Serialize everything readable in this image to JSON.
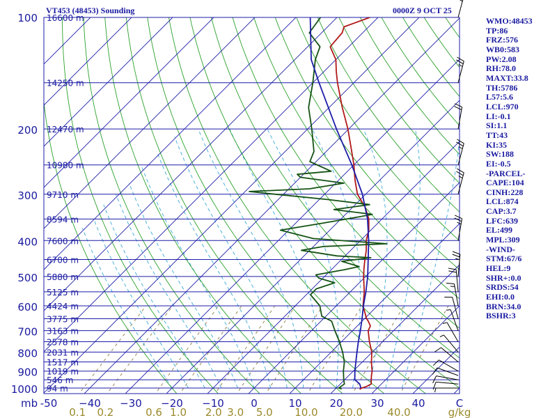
{
  "header": {
    "station": "VT453 (48453) Sounding",
    "time": "0000Z  9 OCT 25"
  },
  "colors": {
    "temperature": "#b01818",
    "dewpoint": "#145214",
    "parcel": "#1c1ca8",
    "isobar": "#1c1ca8",
    "isotherm": "#1c1ca8",
    "dry_adiabat": "#2aa02a",
    "moist_adiabat": "#3aa8d8",
    "mixing_ratio": "#8a7a40",
    "axis_text": "#1a1aa0",
    "mixing_text": "#9a8a2a",
    "wind_barb": "#000000"
  },
  "chart_data": {
    "type": "line",
    "title": "VT453 (48453) Sounding",
    "diagram": "skew-T log-P",
    "y_axis_label": "mb",
    "pressure_levels": [
      100,
      200,
      300,
      400,
      500,
      600,
      700,
      800,
      900,
      1000
    ],
    "temperature_ticks": [
      -50,
      -40,
      -30,
      -20,
      -10,
      0,
      10,
      20,
      30,
      40
    ],
    "temperature_tick_labels": [
      "-50",
      "−40",
      "−30",
      "−20",
      "−10",
      "0",
      "10",
      "20",
      "30",
      "40"
    ],
    "corner_label": "C",
    "mixing_ratio_labels": [
      "0.1",
      "0.2",
      "0.6",
      "1.0",
      "2.0",
      "3.0",
      "5.0",
      "10.0",
      "20.0",
      "40.0"
    ],
    "mixing_ratio_values": [
      0.1,
      0.2,
      0.6,
      1.0,
      2.0,
      3.0,
      5.0,
      10.0,
      20.0,
      40.0
    ],
    "mixing_ratio_unit": "g/kg",
    "height_labels": [
      {
        "p": 100,
        "label": "16600 m"
      },
      {
        "p": 150,
        "label": "14250 m"
      },
      {
        "p": 200,
        "label": "12470 m"
      },
      {
        "p": 250,
        "label": "10980 m"
      },
      {
        "p": 300,
        "label": "9710 m"
      },
      {
        "p": 350,
        "label": "8594 m"
      },
      {
        "p": 400,
        "label": "7600 m"
      },
      {
        "p": 450,
        "label": "6700 m"
      },
      {
        "p": 500,
        "label": "5880 m"
      },
      {
        "p": 550,
        "label": "5125 m"
      },
      {
        "p": 600,
        "label": "4424 m"
      },
      {
        "p": 650,
        "label": "3775 m"
      },
      {
        "p": 700,
        "label": "3163 m"
      },
      {
        "p": 750,
        "label": "2578 m"
      },
      {
        "p": 800,
        "label": "2031 m"
      },
      {
        "p": 850,
        "label": "1517 m"
      },
      {
        "p": 900,
        "label": "1019 m"
      },
      {
        "p": 950,
        "label": "546 m"
      },
      {
        "p": 1000,
        "label": "94 m"
      }
    ],
    "series": [
      {
        "name": "Temperature",
        "points": [
          [
            1008,
            26.0
          ],
          [
            1000,
            26.2
          ],
          [
            990,
            27.0
          ],
          [
            975,
            27.5
          ],
          [
            950,
            26.5
          ],
          [
            925,
            25.5
          ],
          [
            900,
            24.6
          ],
          [
            875,
            23.4
          ],
          [
            850,
            22.2
          ],
          [
            800,
            19.9
          ],
          [
            750,
            16.8
          ],
          [
            700,
            13.8
          ],
          [
            680,
            13.2
          ],
          [
            660,
            11.5
          ],
          [
            650,
            10.5
          ],
          [
            600,
            6.5
          ],
          [
            550,
            3.4
          ],
          [
            500,
            -0.5
          ],
          [
            475,
            -2.4
          ],
          [
            450,
            -4.3
          ],
          [
            425,
            -6.2
          ],
          [
            400,
            -8.6
          ],
          [
            375,
            -10.5
          ],
          [
            350,
            -13.2
          ],
          [
            325,
            -17.0
          ],
          [
            300,
            -22.0
          ],
          [
            275,
            -26.0
          ],
          [
            250,
            -30.0
          ],
          [
            225,
            -34.8
          ],
          [
            200,
            -40.2
          ],
          [
            175,
            -46.8
          ],
          [
            150,
            -54.0
          ],
          [
            140,
            -57.0
          ],
          [
            130,
            -60.0
          ],
          [
            120,
            -64.5
          ],
          [
            110,
            -65.0
          ],
          [
            106,
            -66.0
          ],
          [
            100,
            -62.0
          ]
        ]
      },
      {
        "name": "Dew point",
        "points": [
          [
            1005,
            21.5
          ],
          [
            1000,
            20.6
          ],
          [
            975,
            21.0
          ],
          [
            950,
            19.8
          ],
          [
            900,
            17.6
          ],
          [
            850,
            15.6
          ],
          [
            800,
            12.8
          ],
          [
            750,
            9.5
          ],
          [
            700,
            5.7
          ],
          [
            660,
            2.6
          ],
          [
            640,
            -1.0
          ],
          [
            600,
            -4.0
          ],
          [
            560,
            -9.0
          ],
          [
            540,
            -9.0
          ],
          [
            520,
            -6.0
          ],
          [
            505,
            -11.0
          ],
          [
            495,
            -12.5
          ],
          [
            480,
            -7.0
          ],
          [
            470,
            -4.0
          ],
          [
            455,
            -9.5
          ],
          [
            445,
            -3.3
          ],
          [
            440,
            -12.0
          ],
          [
            425,
            -22.0
          ],
          [
            415,
            -17.5
          ],
          [
            408,
            -2.8
          ],
          [
            395,
            -22.0
          ],
          [
            375,
            -32.0
          ],
          [
            360,
            -24.0
          ],
          [
            345,
            -16.0
          ],
          [
            340,
            -13.5
          ],
          [
            330,
            -24.0
          ],
          [
            320,
            -16.5
          ],
          [
            310,
            -28.0
          ],
          [
            300,
            -42.0
          ],
          [
            295,
            -49.0
          ],
          [
            290,
            -35.0
          ],
          [
            280,
            -28.0
          ],
          [
            270,
            -40.0
          ],
          [
            265,
            -41.5
          ],
          [
            260,
            -34.0
          ],
          [
            245,
            -41.5
          ],
          [
            230,
            -43.0
          ],
          [
            200,
            -49.0
          ],
          [
            175,
            -55.0
          ],
          [
            150,
            -60.0
          ],
          [
            130,
            -65.0
          ],
          [
            120,
            -67.0
          ],
          [
            110,
            -73.0
          ],
          [
            100,
            -74.0
          ]
        ]
      },
      {
        "name": "Parcel",
        "points": [
          [
            1000,
            26.0
          ],
          [
            975,
            24.7
          ],
          [
            960,
            23.4
          ],
          [
            950,
            22.5
          ],
          [
            900,
            20.4
          ],
          [
            850,
            18.4
          ],
          [
            800,
            16.3
          ],
          [
            750,
            14.1
          ],
          [
            700,
            11.9
          ],
          [
            650,
            9.4
          ],
          [
            600,
            6.6
          ],
          [
            550,
            3.8
          ],
          [
            500,
            0.5
          ],
          [
            450,
            -3.5
          ],
          [
            400,
            -8.0
          ],
          [
            350,
            -13.5
          ],
          [
            300,
            -20.8
          ],
          [
            250,
            -30.5
          ],
          [
            200,
            -43.0
          ],
          [
            150,
            -58.5
          ],
          [
            130,
            -66.0
          ],
          [
            100,
            -76.5
          ]
        ]
      }
    ],
    "wind_barbs": [
      {
        "p": 1000,
        "dir": 270,
        "spd": 5
      },
      {
        "p": 975,
        "dir": 275,
        "spd": 10
      },
      {
        "p": 950,
        "dir": 280,
        "spd": 10
      },
      {
        "p": 925,
        "dir": 290,
        "spd": 10
      },
      {
        "p": 900,
        "dir": 300,
        "spd": 10
      },
      {
        "p": 850,
        "dir": 310,
        "spd": 10
      },
      {
        "p": 800,
        "dir": 320,
        "spd": 5
      },
      {
        "p": 750,
        "dir": 330,
        "spd": 5
      },
      {
        "p": 700,
        "dir": 340,
        "spd": 5
      },
      {
        "p": 650,
        "dir": 345,
        "spd": 10
      },
      {
        "p": 600,
        "dir": 350,
        "spd": 15
      },
      {
        "p": 550,
        "dir": 355,
        "spd": 20
      },
      {
        "p": 500,
        "dir": 5,
        "spd": 25
      },
      {
        "p": 400,
        "dir": 10,
        "spd": 25
      },
      {
        "p": 300,
        "dir": 15,
        "spd": 25
      },
      {
        "p": 250,
        "dir": 15,
        "spd": 25
      },
      {
        "p": 200,
        "dir": 10,
        "spd": 20
      },
      {
        "p": 150,
        "dir": 15,
        "spd": 25
      },
      {
        "p": 100,
        "dir": 15,
        "spd": 25
      }
    ]
  },
  "stats": [
    "WMO:48453",
    "TP:86",
    "FRZ:576",
    "WB0:583",
    "PW:2.08",
    "RH:78.0",
    "MAXT:33.8",
    "TH:5786",
    "L57:5.6",
    "LCL:970",
    "LI:-0.1",
    "SI:1.1",
    "TT:43",
    "KI:35",
    "SW:188",
    "EI:-0.5",
    "-PARCEL-",
    "CAPE:104",
    "CINH:228",
    "LCL:874",
    "CAP:3.7",
    "LFC:639",
    "EL:499",
    "MPL:309",
    "-WIND-",
    "STM:67/6",
    "HEL:9",
    "SHR+:0.0",
    "SRDS:54",
    "EHI:0.0",
    "BRN:34.0",
    "BSHR:3"
  ]
}
